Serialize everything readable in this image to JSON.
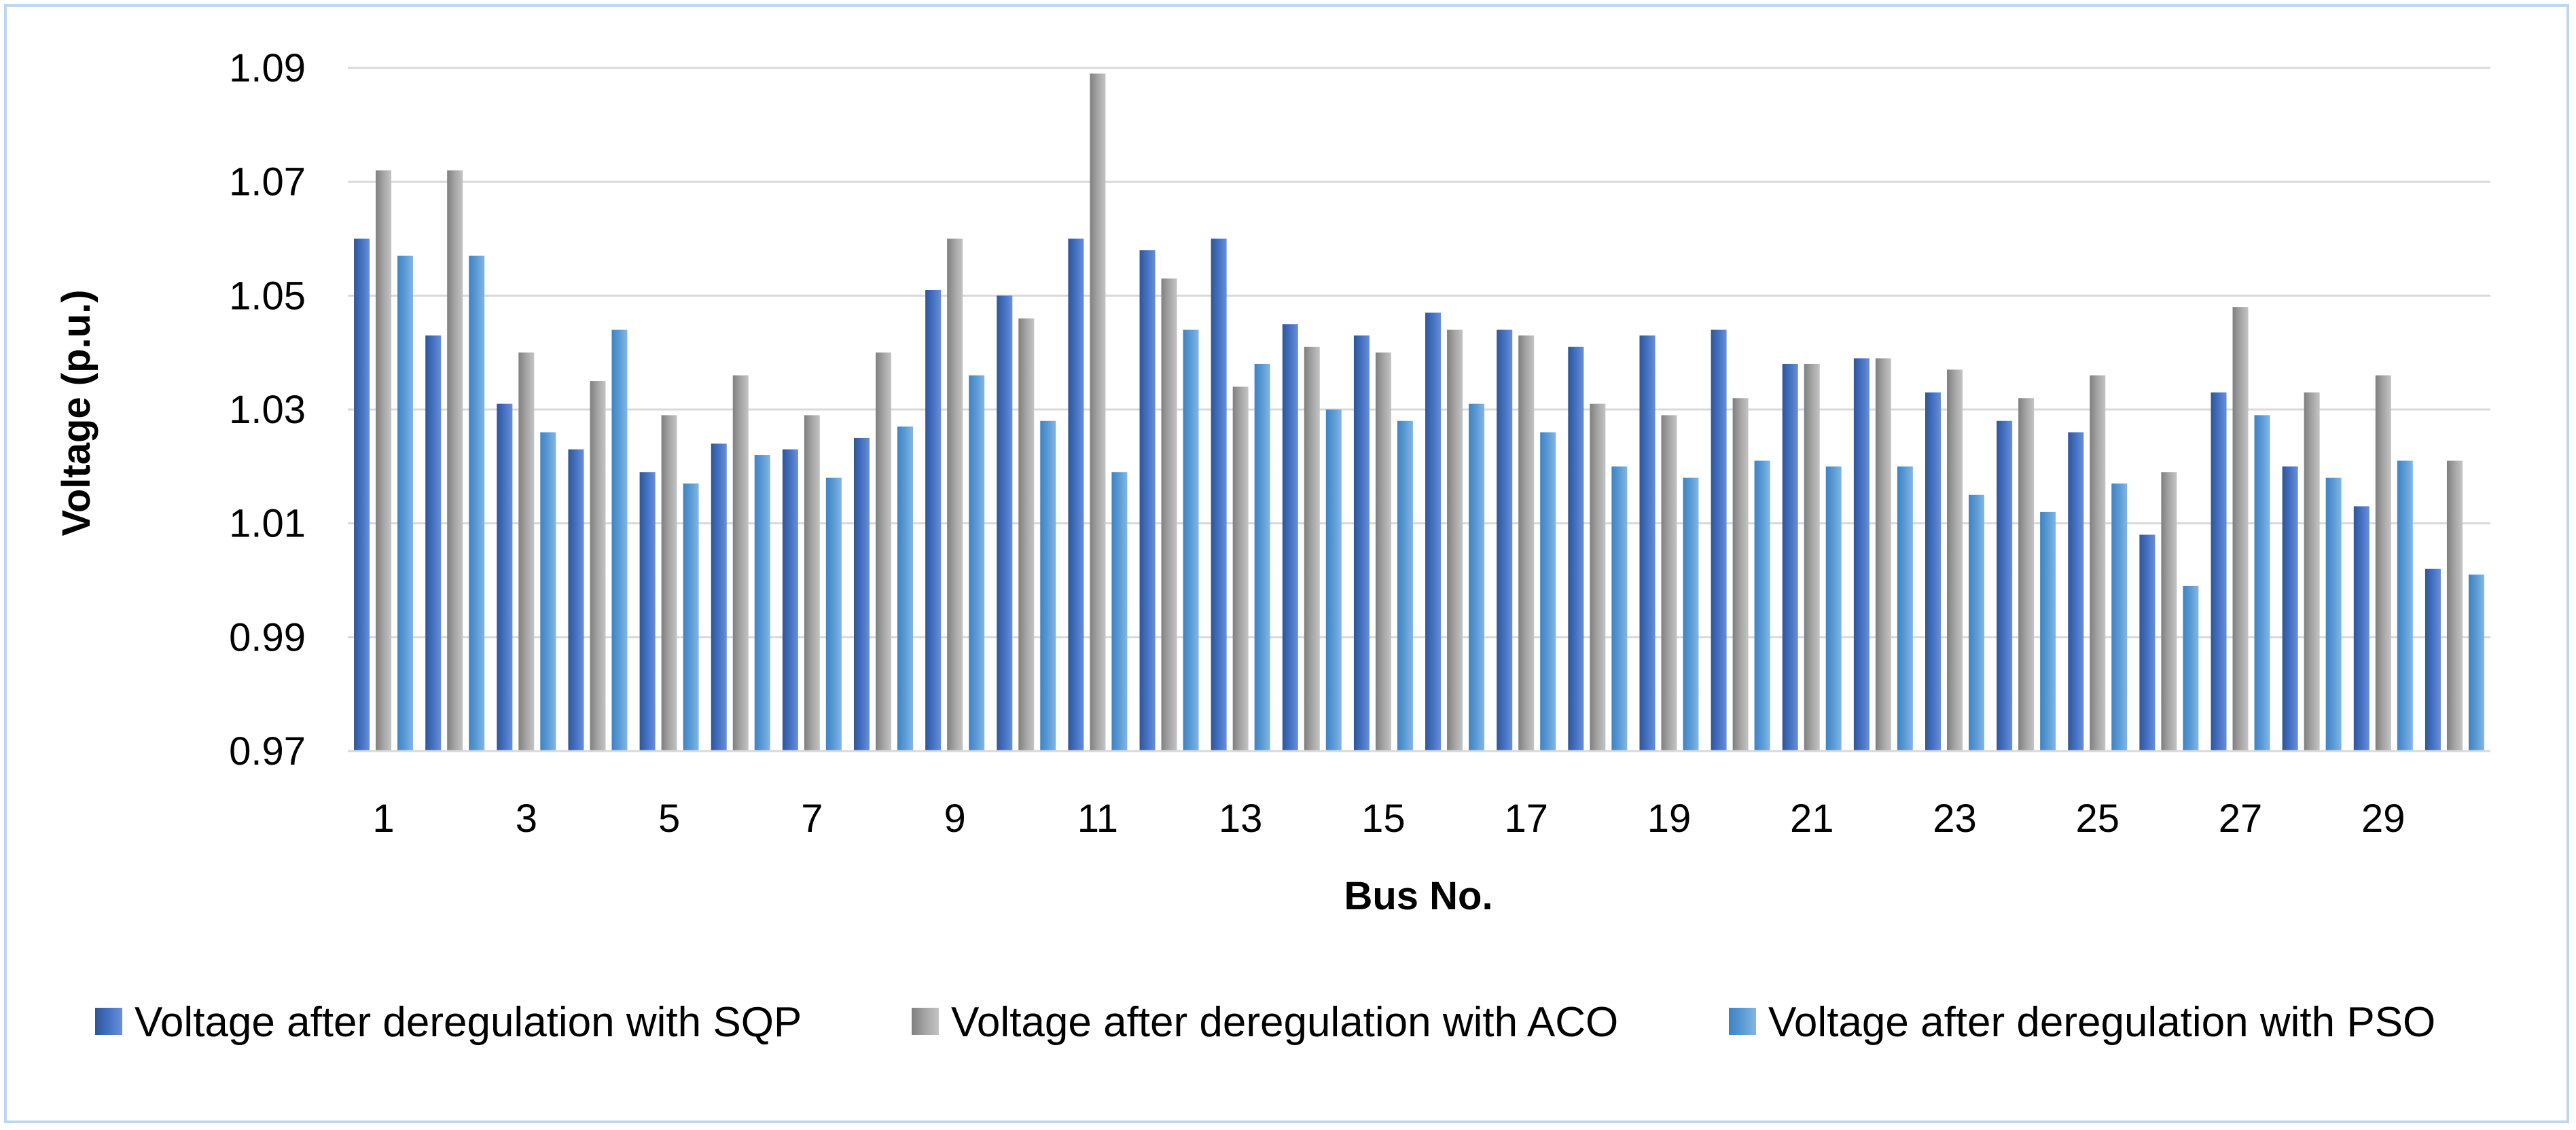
{
  "chart_data": {
    "type": "bar",
    "title": "",
    "xlabel": "Bus No.",
    "ylabel": "Voltage (p.u.)",
    "ylim": [
      0.97,
      1.09
    ],
    "yticks": [
      0.97,
      0.99,
      1.01,
      1.03,
      1.05,
      1.07,
      1.09
    ],
    "ytick_labels": [
      "0.97",
      "0.99",
      "1.01",
      "1.03",
      "1.05",
      "1.07",
      "1.09"
    ],
    "grid": true,
    "legend_position": "bottom",
    "categories": [
      1,
      2,
      3,
      4,
      5,
      6,
      7,
      8,
      9,
      10,
      11,
      12,
      13,
      14,
      15,
      16,
      17,
      18,
      19,
      20,
      21,
      22,
      23,
      24,
      25,
      26,
      27,
      28,
      29,
      30
    ],
    "xtick_labels": [
      "1",
      "3",
      "5",
      "7",
      "9",
      "11",
      "13",
      "15",
      "17",
      "19",
      "21",
      "23",
      "25",
      "27",
      "29"
    ],
    "series": [
      {
        "name": "Voltage after deregulation with SQP",
        "color": "#4472c4",
        "values": [
          1.06,
          1.043,
          1.031,
          1.023,
          1.019,
          1.024,
          1.023,
          1.025,
          1.051,
          1.05,
          1.06,
          1.058,
          1.06,
          1.045,
          1.043,
          1.047,
          1.044,
          1.041,
          1.043,
          1.044,
          1.038,
          1.039,
          1.033,
          1.028,
          1.026,
          1.008,
          1.033,
          1.02,
          1.013,
          1.002
        ]
      },
      {
        "name": "Voltage after deregulation with ACO",
        "color": "#a5a5a5",
        "values": [
          1.072,
          1.072,
          1.04,
          1.035,
          1.029,
          1.036,
          1.029,
          1.04,
          1.06,
          1.046,
          1.089,
          1.053,
          1.034,
          1.041,
          1.04,
          1.044,
          1.043,
          1.031,
          1.029,
          1.032,
          1.038,
          1.039,
          1.037,
          1.032,
          1.036,
          1.019,
          1.048,
          1.033,
          1.036,
          1.021
        ]
      },
      {
        "name": "Voltage after deregulation with PSO",
        "color": "#5b9bd5",
        "values": [
          1.057,
          1.057,
          1.026,
          1.044,
          1.017,
          1.022,
          1.018,
          1.027,
          1.036,
          1.028,
          1.019,
          1.044,
          1.038,
          1.03,
          1.028,
          1.031,
          1.026,
          1.02,
          1.018,
          1.021,
          1.02,
          1.02,
          1.015,
          1.012,
          1.017,
          0.999,
          1.029,
          1.018,
          1.021,
          1.001
        ]
      }
    ]
  }
}
